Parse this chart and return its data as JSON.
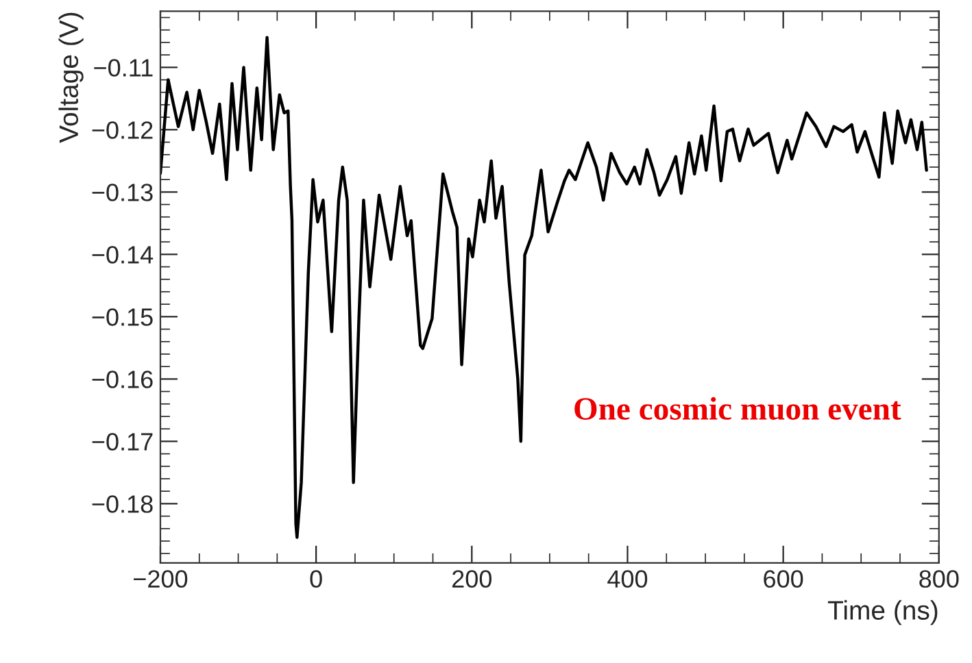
{
  "chart_data": {
    "type": "line",
    "xlabel": "Time (ns)",
    "ylabel": "Voltage (V)",
    "annotations": [
      "One cosmic muon event"
    ],
    "xlim": [
      -200,
      800
    ],
    "xticks": [
      {
        "value": -200,
        "label": "−200"
      },
      0,
      200,
      400,
      600,
      800
    ],
    "ylim": [
      -0.1895,
      -0.101
    ],
    "yticks": [
      {
        "value": -0.18,
        "label": "−0.18"
      },
      {
        "value": -0.17,
        "label": "−0.17"
      },
      {
        "value": -0.16,
        "label": "−0.16"
      },
      {
        "value": -0.15,
        "label": "−0.15"
      },
      {
        "value": -0.14,
        "label": "−0.14"
      },
      {
        "value": -0.13,
        "label": "−0.13"
      },
      {
        "value": -0.12,
        "label": "−0.12"
      },
      {
        "value": -0.11,
        "label": "−0.11"
      }
    ],
    "grid": false,
    "legend": false,
    "marker": "none",
    "line_style": "solid",
    "series": [
      {
        "color": "#000000",
        "x": [
          -200,
          -190,
          -177,
          -166,
          -158,
          -150,
          -141,
          -133,
          -124,
          -115,
          -108,
          -101,
          -93,
          -84,
          -76,
          -70,
          -63,
          -55,
          -47,
          -41,
          -36,
          -33,
          -31,
          -26,
          -24.5,
          -19,
          -10,
          -4,
          2,
          9,
          20,
          29,
          34,
          40,
          48,
          55,
          61,
          69,
          81,
          96,
          108,
          117,
          122,
          134,
          137,
          149,
          163,
          175,
          181,
          187,
          196,
          201,
          210,
          216,
          225,
          231,
          239,
          248,
          259,
          263,
          268,
          277,
          289,
          298,
          310,
          319,
          325,
          333,
          349,
          360,
          369,
          379,
          390,
          399,
          409,
          416,
          425,
          434,
          441,
          451,
          462,
          469,
          479,
          486,
          495,
          501,
          511,
          520,
          528,
          535,
          544,
          555,
          562,
          570,
          581,
          593,
          605,
          611,
          630,
          642,
          655,
          665,
          677,
          688,
          695,
          705,
          712,
          723,
          730,
          740,
          747,
          757,
          764,
          772,
          778,
          784
        ],
        "values": [
          -0.127,
          -0.112,
          -0.1195,
          -0.114,
          -0.12,
          -0.1137,
          -0.1188,
          -0.1238,
          -0.1159,
          -0.128,
          -0.1126,
          -0.1232,
          -0.11,
          -0.1265,
          -0.1133,
          -0.1216,
          -0.1052,
          -0.1232,
          -0.1144,
          -0.1173,
          -0.117,
          -0.129,
          -0.1345,
          -0.1832,
          -0.1854,
          -0.1766,
          -0.143,
          -0.128,
          -0.1348,
          -0.1313,
          -0.1524,
          -0.1313,
          -0.126,
          -0.1313,
          -0.1766,
          -0.1503,
          -0.1313,
          -0.1452,
          -0.1305,
          -0.1408,
          -0.1291,
          -0.137,
          -0.1346,
          -0.1546,
          -0.1551,
          -0.1503,
          -0.1271,
          -0.1331,
          -0.1357,
          -0.1577,
          -0.1375,
          -0.1404,
          -0.1313,
          -0.1348,
          -0.125,
          -0.1342,
          -0.1291,
          -0.1445,
          -0.1599,
          -0.17,
          -0.1401,
          -0.137,
          -0.1265,
          -0.1364,
          -0.1316,
          -0.1282,
          -0.1265,
          -0.128,
          -0.1221,
          -0.126,
          -0.1313,
          -0.1238,
          -0.1269,
          -0.1287,
          -0.126,
          -0.1287,
          -0.1232,
          -0.1269,
          -0.1305,
          -0.128,
          -0.1243,
          -0.1302,
          -0.1221,
          -0.1271,
          -0.121,
          -0.1265,
          -0.1162,
          -0.1282,
          -0.1203,
          -0.1199,
          -0.125,
          -0.1199,
          -0.1225,
          -0.1217,
          -0.1206,
          -0.1269,
          -0.1217,
          -0.1247,
          -0.1173,
          -0.1195,
          -0.1227,
          -0.1195,
          -0.1203,
          -0.1192,
          -0.1236,
          -0.1203,
          -0.1232,
          -0.1276,
          -0.1173,
          -0.1254,
          -0.117,
          -0.1221,
          -0.1184,
          -0.1232,
          -0.1188,
          -0.1265
        ]
      }
    ]
  }
}
